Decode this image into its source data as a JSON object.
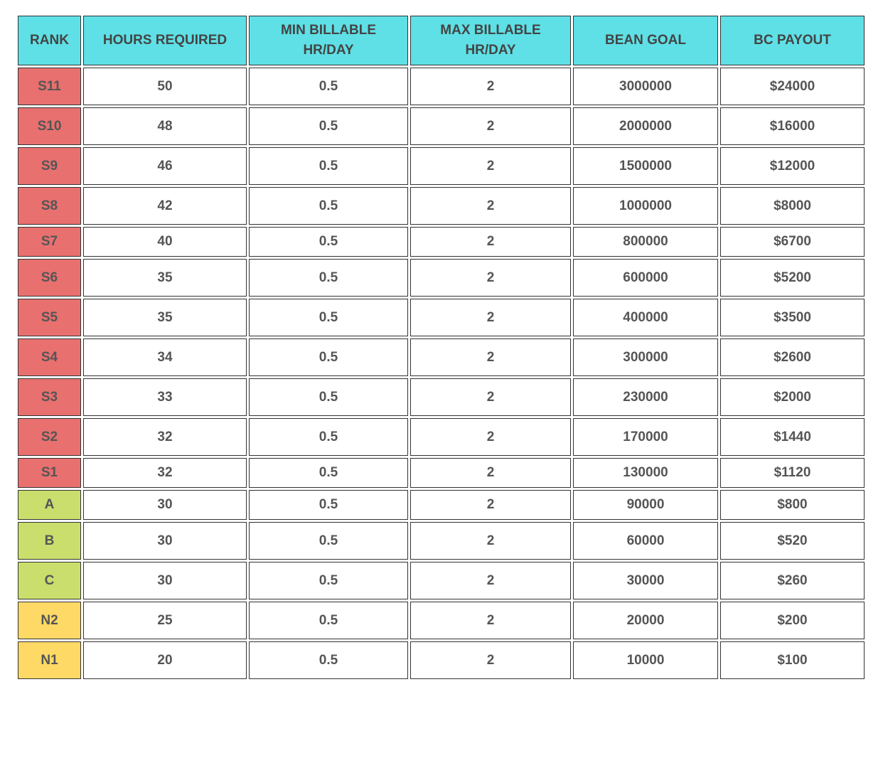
{
  "table": {
    "headers": [
      "RANK",
      "HOURS REQUIRED",
      "MIN BILLABLE HR/DAY",
      "MAX BILLABLE HR/DAY",
      "BEAN GOAL",
      "BC PAYOUT"
    ],
    "header_color": "#5ee0e6",
    "rows": [
      [
        "S11",
        50,
        0.5,
        2,
        3000000,
        "$24000"
      ],
      [
        "S10",
        48,
        0.5,
        2,
        2000000,
        "$16000"
      ],
      [
        "S9",
        46,
        0.5,
        2,
        1500000,
        "$12000"
      ],
      [
        "S8",
        42,
        0.5,
        2,
        1000000,
        "$8000"
      ],
      [
        "S7",
        40,
        0.5,
        2,
        800000,
        "$6700"
      ],
      [
        "S6",
        35,
        0.5,
        2,
        600000,
        "$5200"
      ],
      [
        "S5",
        35,
        0.5,
        2,
        400000,
        "$3500"
      ],
      [
        "S4",
        34,
        0.5,
        2,
        300000,
        "$2600"
      ],
      [
        "S3",
        33,
        0.5,
        2,
        230000,
        "$2000"
      ],
      [
        "S2",
        32,
        0.5,
        2,
        170000,
        "$1440"
      ],
      [
        "S1",
        32,
        0.5,
        2,
        130000,
        "$1120"
      ],
      [
        "A",
        30,
        0.5,
        2,
        90000,
        "$800"
      ],
      [
        "B",
        30,
        0.5,
        2,
        60000,
        "$520"
      ],
      [
        "C",
        30,
        0.5,
        2,
        30000,
        "$260"
      ],
      [
        "N2",
        25,
        0.5,
        2,
        20000,
        "$200"
      ],
      [
        "N1",
        20,
        0.5,
        2,
        10000,
        "$100"
      ]
    ],
    "rank_colors": [
      "#e8706f",
      "#e8706f",
      "#e8706f",
      "#e8706f",
      "#e8706f",
      "#e8706f",
      "#e8706f",
      "#e8706f",
      "#e8706f",
      "#e8706f",
      "#e8706f",
      "#c9de6c",
      "#c9de6c",
      "#c9de6c",
      "#ffd966",
      "#ffd966"
    ]
  }
}
